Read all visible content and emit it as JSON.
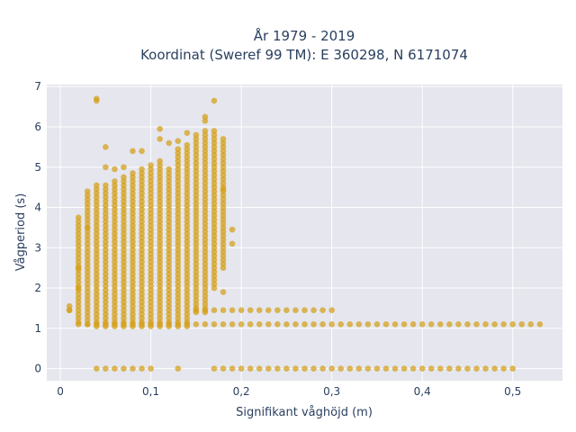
{
  "chart_data": {
    "type": "scatter",
    "title_line1": "År 1979 - 2019",
    "title_line2": "Koordinat (Sweref 99 TM): E 360298, N 6171074",
    "xlabel": "Signifikant våghöjd (m)",
    "ylabel": "Vågperiod (s)",
    "xlim": [
      -0.015,
      0.555
    ],
    "ylim": [
      -0.3,
      7.05
    ],
    "x_ticks": [
      0,
      0.1,
      0.2,
      0.3,
      0.4,
      0.5
    ],
    "x_tick_labels": [
      "0",
      "0,1",
      "0,2",
      "0,3",
      "0,4",
      "0,5"
    ],
    "y_ticks": [
      0,
      1,
      2,
      3,
      4,
      5,
      6,
      7
    ],
    "y_tick_labels": [
      "0",
      "1",
      "2",
      "3",
      "4",
      "5",
      "6",
      "7"
    ],
    "grid": true,
    "marker_color": "#d4a017",
    "plot_bg": "#e5e6ee",
    "bands": [
      {
        "x": 0.01,
        "ymin": 1.45,
        "ymax": 1.55
      },
      {
        "x": 0.02,
        "ymin": 1.15,
        "ymax": 3.75
      },
      {
        "x": 0.03,
        "ymin": 1.1,
        "ymax": 4.45
      },
      {
        "x": 0.04,
        "ymin": 1.05,
        "ymax": 4.55
      },
      {
        "x": 0.05,
        "ymin": 1.05,
        "ymax": 4.6
      },
      {
        "x": 0.06,
        "ymin": 1.05,
        "ymax": 4.7
      },
      {
        "x": 0.07,
        "ymin": 1.05,
        "ymax": 4.8
      },
      {
        "x": 0.08,
        "ymin": 1.05,
        "ymax": 4.85
      },
      {
        "x": 0.09,
        "ymin": 1.05,
        "ymax": 4.95
      },
      {
        "x": 0.1,
        "ymin": 1.05,
        "ymax": 5.1
      },
      {
        "x": 0.11,
        "ymin": 1.05,
        "ymax": 5.2
      },
      {
        "x": 0.12,
        "ymin": 1.05,
        "ymax": 5.0
      },
      {
        "x": 0.13,
        "ymin": 1.05,
        "ymax": 5.5
      },
      {
        "x": 0.14,
        "ymin": 1.05,
        "ymax": 5.6
      },
      {
        "x": 0.15,
        "ymin": 1.4,
        "ymax": 5.8
      },
      {
        "x": 0.16,
        "ymin": 1.4,
        "ymax": 5.95
      },
      {
        "x": 0.17,
        "ymin": 2.0,
        "ymax": 5.9
      },
      {
        "x": 0.18,
        "ymin": 2.5,
        "ymax": 5.7
      }
    ],
    "lower_row": {
      "y": 1.1,
      "xmin": 0.02,
      "xmax": 0.53,
      "step": 0.01
    },
    "upper_row": {
      "y": 1.45,
      "xmin": 0.15,
      "xmax": 0.3,
      "step": 0.01
    },
    "zero_row": {
      "y": 0.0,
      "x": [
        0.04,
        0.05,
        0.06,
        0.07,
        0.08,
        0.09,
        0.1,
        0.13,
        0.17,
        0.18,
        0.19,
        0.2,
        0.21,
        0.22,
        0.23,
        0.24,
        0.25,
        0.26,
        0.27,
        0.28,
        0.29,
        0.3,
        0.31,
        0.32,
        0.33,
        0.34,
        0.35,
        0.36,
        0.37,
        0.38,
        0.39,
        0.4,
        0.41,
        0.42,
        0.43,
        0.44,
        0.45,
        0.46,
        0.47,
        0.48,
        0.49,
        0.5
      ]
    },
    "outliers": [
      {
        "x": 0.04,
        "y": 6.7
      },
      {
        "x": 0.04,
        "y": 6.65
      },
      {
        "x": 0.05,
        "y": 5.5
      },
      {
        "x": 0.05,
        "y": 5.0
      },
      {
        "x": 0.06,
        "y": 4.95
      },
      {
        "x": 0.07,
        "y": 5.0
      },
      {
        "x": 0.08,
        "y": 5.4
      },
      {
        "x": 0.09,
        "y": 5.4
      },
      {
        "x": 0.11,
        "y": 5.95
      },
      {
        "x": 0.11,
        "y": 5.7
      },
      {
        "x": 0.12,
        "y": 5.6
      },
      {
        "x": 0.13,
        "y": 5.65
      },
      {
        "x": 0.14,
        "y": 5.85
      },
      {
        "x": 0.16,
        "y": 6.25
      },
      {
        "x": 0.16,
        "y": 6.15
      },
      {
        "x": 0.17,
        "y": 6.65
      },
      {
        "x": 0.18,
        "y": 1.9
      },
      {
        "x": 0.18,
        "y": 4.45
      },
      {
        "x": 0.19,
        "y": 3.45
      },
      {
        "x": 0.19,
        "y": 3.1
      },
      {
        "x": 0.02,
        "y": 2.5
      },
      {
        "x": 0.02,
        "y": 2.0
      },
      {
        "x": 0.03,
        "y": 3.5
      },
      {
        "x": 0.01,
        "y": 1.45
      }
    ]
  }
}
